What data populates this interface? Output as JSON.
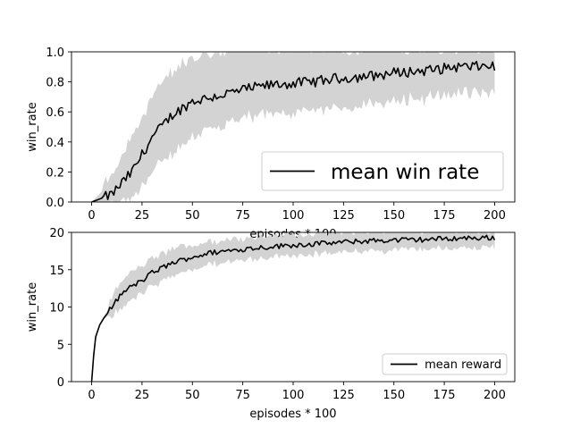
{
  "chart_data": [
    {
      "type": "line",
      "ylabel": "win_rate",
      "xlabel": "episodes * 100",
      "xlim": [
        -10,
        210
      ],
      "ylim": [
        0,
        1.0
      ],
      "xticks": [
        0,
        25,
        50,
        75,
        100,
        125,
        150,
        175,
        200
      ],
      "yticks": [
        0.0,
        0.2,
        0.4,
        0.6,
        0.8,
        1.0
      ],
      "ytick_labels": [
        "0.0",
        "0.2",
        "0.4",
        "0.6",
        "0.8",
        "1.0"
      ],
      "grid": false,
      "legend": {
        "position": "bottom-right",
        "entries": [
          "mean win rate"
        ]
      },
      "series": [
        {
          "name": "mean win rate",
          "color": "#000000",
          "x": [
            0,
            10,
            20,
            30,
            40,
            50,
            60,
            70,
            80,
            90,
            100,
            110,
            120,
            130,
            140,
            150,
            160,
            170,
            180,
            190,
            200
          ],
          "values": [
            0.0,
            0.05,
            0.2,
            0.43,
            0.58,
            0.67,
            0.7,
            0.73,
            0.76,
            0.78,
            0.79,
            0.8,
            0.82,
            0.83,
            0.84,
            0.86,
            0.87,
            0.88,
            0.9,
            0.9,
            0.91
          ]
        }
      ],
      "band": {
        "color": "#d3d3d3",
        "lower": [
          0.0,
          0.0,
          0.03,
          0.22,
          0.36,
          0.46,
          0.52,
          0.55,
          0.59,
          0.62,
          0.62,
          0.63,
          0.65,
          0.66,
          0.67,
          0.7,
          0.72,
          0.72,
          0.75,
          0.75,
          0.76
        ],
        "upper": [
          0.0,
          0.14,
          0.4,
          0.68,
          0.85,
          0.93,
          0.96,
          0.98,
          1.0,
          1.0,
          1.0,
          1.0,
          1.0,
          1.0,
          1.0,
          1.0,
          1.0,
          1.0,
          1.0,
          1.0,
          1.0
        ]
      }
    },
    {
      "type": "line",
      "ylabel": "win_rate",
      "xlabel": "episodes * 100",
      "xlim": [
        -10,
        210
      ],
      "ylim": [
        0,
        20
      ],
      "xticks": [
        0,
        25,
        50,
        75,
        100,
        125,
        150,
        175,
        200
      ],
      "yticks": [
        0,
        5,
        10,
        15,
        20
      ],
      "ytick_labels": [
        "0",
        "5",
        "10",
        "15",
        "20"
      ],
      "grid": false,
      "legend": {
        "position": "bottom-right",
        "entries": [
          "mean reward"
        ]
      },
      "series": [
        {
          "name": "mean reward",
          "color": "#000000",
          "x": [
            0,
            1,
            2,
            4,
            6,
            8,
            10,
            15,
            20,
            25,
            30,
            40,
            50,
            60,
            70,
            80,
            90,
            100,
            120,
            140,
            160,
            180,
            200
          ],
          "values": [
            0,
            3.5,
            6,
            7.6,
            8.5,
            9.2,
            10.0,
            11.8,
            12.8,
            13.5,
            14.6,
            15.9,
            16.7,
            17.3,
            17.6,
            17.9,
            18.1,
            18.3,
            18.6,
            18.9,
            19.0,
            19.2,
            19.3
          ]
        }
      ],
      "band": {
        "color": "#d3d3d3",
        "lower": [
          0,
          3.5,
          6,
          7.6,
          8.3,
          8.8,
          9.0,
          10.2,
          11.2,
          12.0,
          13.0,
          14.4,
          15.3,
          16.0,
          16.4,
          16.7,
          17.0,
          17.2,
          17.5,
          17.8,
          18.0,
          18.2,
          18.3
        ],
        "upper": [
          0,
          3.5,
          6,
          7.6,
          8.7,
          9.6,
          11.0,
          13.2,
          14.4,
          15.2,
          16.2,
          17.5,
          18.1,
          18.6,
          18.9,
          19.1,
          19.3,
          19.5,
          19.7,
          19.9,
          20.0,
          20.0,
          20.0
        ]
      }
    }
  ]
}
